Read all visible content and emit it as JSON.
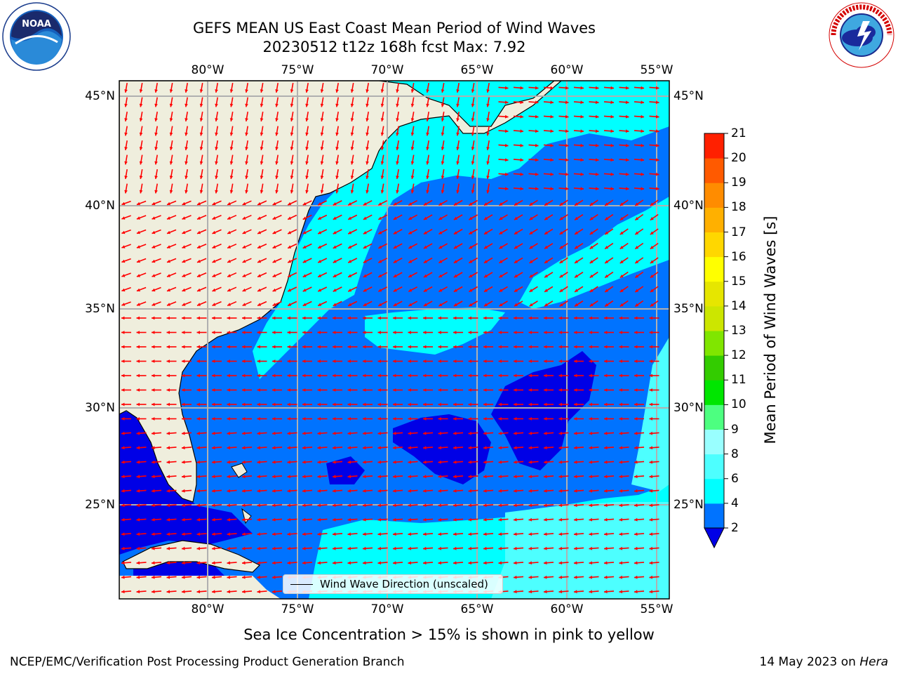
{
  "title": {
    "line1": "GEFS MEAN US East Coast Mean Period of Wind Waves",
    "line2": "20230512 t12z 168h fcst   Max: 7.92"
  },
  "logos": {
    "left": {
      "text": "NOAA",
      "ring_text": "NATIONAL OCEANIC AND ATMOSPHERIC ADMINISTRATION · U.S. DEPARTMENT OF COMMERCE"
    },
    "right": {
      "ring_text": "NATIONAL WEATHER SERVICE"
    }
  },
  "map": {
    "lon_ticks": [
      "80°W",
      "75°W",
      "70°W",
      "65°W",
      "60°W",
      "55°W"
    ],
    "lat_ticks": [
      "45°N",
      "40°N",
      "35°N",
      "30°N",
      "25°N"
    ],
    "land_color": "#efeedd",
    "ocean_colors": {
      "2-4": "#0073ff",
      "4-6": "#00ffff",
      "6-8": "#4dffff",
      "below": "#0000e6"
    },
    "arrow_color": "#ff0000",
    "legend_label": "Wind Wave Direction (unscaled)"
  },
  "colorbar": {
    "label": "Mean Period of Wind Waves [s]",
    "ticks": [
      "2",
      "4",
      "6",
      "8",
      "9",
      "10",
      "11",
      "12",
      "13",
      "14",
      "15",
      "16",
      "17",
      "18",
      "19",
      "20",
      "21"
    ],
    "colors": [
      "#0073ff",
      "#00ffff",
      "#4dffff",
      "#99ffff",
      "#4dff80",
      "#00e600",
      "#33cc00",
      "#80e600",
      "#cce600",
      "#e6e600",
      "#ffff00",
      "#ffd700",
      "#ffb000",
      "#ff8c00",
      "#ff5a00",
      "#ff2000"
    ],
    "under_color": "#0000e6"
  },
  "footer": {
    "note": "Sea Ice Concentration > 15% is shown in pink to yellow",
    "credit": "NCEP/EMC/Verification Post Processing Product Generation Branch",
    "date": "14 May 2023 on",
    "machine": "Hera"
  }
}
